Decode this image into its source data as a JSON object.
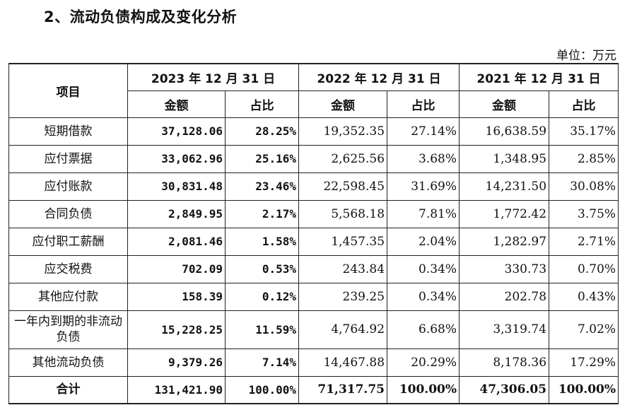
{
  "heading": "2、流动负债构成及变化分析",
  "unit": "单位：万元",
  "table": {
    "item_header": "项目",
    "periods": [
      "2023 年 12 月 31 日",
      "2022 年 12 月 31 日",
      "2021 年 12 月 31 日"
    ],
    "amount_label": "金额",
    "ratio_label": "占比",
    "rows": [
      {
        "item": "短期借款",
        "v": [
          "37,128.06",
          "28.25%",
          "19,352.35",
          "27.14%",
          "16,638.59",
          "35.17%"
        ]
      },
      {
        "item": "应付票据",
        "v": [
          "33,062.96",
          "25.16%",
          "2,625.56",
          "3.68%",
          "1,348.95",
          "2.85%"
        ]
      },
      {
        "item": "应付账款",
        "v": [
          "30,831.48",
          "23.46%",
          "22,598.45",
          "31.69%",
          "14,231.50",
          "30.08%"
        ]
      },
      {
        "item": "合同负债",
        "v": [
          "2,849.95",
          "2.17%",
          "5,568.18",
          "7.81%",
          "1,772.42",
          "3.75%"
        ]
      },
      {
        "item": "应付职工薪酬",
        "v": [
          "2,081.46",
          "1.58%",
          "1,457.35",
          "2.04%",
          "1,282.97",
          "2.71%"
        ]
      },
      {
        "item": "应交税费",
        "v": [
          "702.09",
          "0.53%",
          "243.84",
          "0.34%",
          "330.73",
          "0.70%"
        ]
      },
      {
        "item": "其他应付款",
        "v": [
          "158.39",
          "0.12%",
          "239.25",
          "0.34%",
          "202.78",
          "0.43%"
        ]
      },
      {
        "item": "一年内到期的非流动负债",
        "v": [
          "15,228.25",
          "11.59%",
          "4,764.92",
          "6.68%",
          "3,319.74",
          "7.02%"
        ]
      },
      {
        "item": "其他流动负债",
        "v": [
          "9,379.26",
          "7.14%",
          "14,467.88",
          "20.29%",
          "8,178.36",
          "17.29%"
        ]
      }
    ],
    "total": {
      "item": "合计",
      "v": [
        "131,421.90",
        "100.00%",
        "71,317.75",
        "100.00%",
        "47,306.05",
        "100.00%"
      ]
    }
  }
}
